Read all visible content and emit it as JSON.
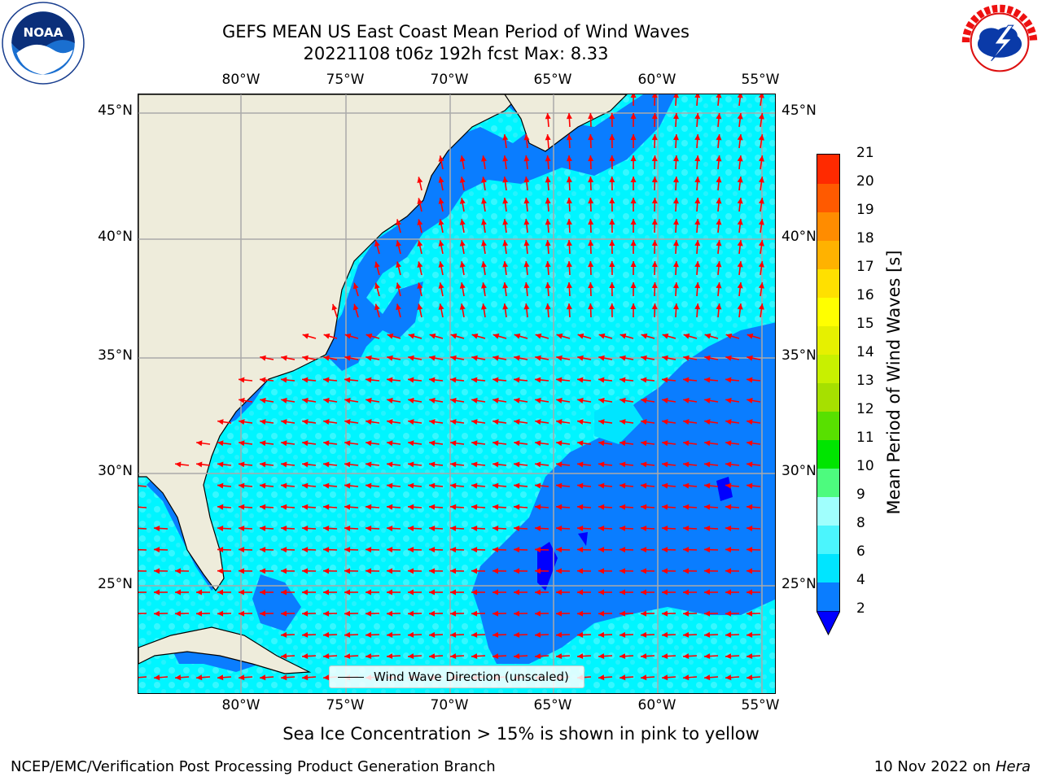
{
  "header": {
    "title_line1": "GEFS MEAN US East Coast Mean Period of Wind Waves",
    "title_line2": "20221108 t06z 192h fcst   Max: 8.33"
  },
  "logos": {
    "left": "noaa-logo",
    "right": "national-weather-service-logo"
  },
  "map": {
    "lon_ticks": [
      "80°W",
      "75°W",
      "70°W",
      "65°W",
      "60°W",
      "55°W"
    ],
    "lat_ticks": [
      "45°N",
      "40°N",
      "35°N",
      "30°N",
      "25°N"
    ],
    "lon_range": [
      -85,
      -54.5
    ],
    "lat_range": [
      20.5,
      46
    ],
    "land_color": "#eeecdb",
    "vector_color": "#ff0000",
    "legend_label": "Wind Wave Direction (unscaled)"
  },
  "colorbar": {
    "title": "Mean Period of Wind Waves [s]",
    "labels": [
      "2",
      "4",
      "6",
      "8",
      "9",
      "10",
      "11",
      "12",
      "13",
      "14",
      "15",
      "16",
      "17",
      "18",
      "19",
      "20",
      "21"
    ],
    "colors": [
      "#0a7dff",
      "#00e5ff",
      "#4bf5fd",
      "#a0fffd",
      "#4dfb7e",
      "#00e500",
      "#58e000",
      "#a6e000",
      "#c8f000",
      "#e6f000",
      "#ffff00",
      "#ffe000",
      "#ffb200",
      "#ff8c00",
      "#ff5a00",
      "#ff2a00"
    ],
    "under_color": "#0000ff"
  },
  "footer": {
    "ice_note": "Sea Ice Concentration > 15% is shown in pink to yellow",
    "credit": "NCEP/EMC/Verification Post Processing Product Generation Branch",
    "date": "10 Nov 2022 on",
    "host": "Hera"
  }
}
